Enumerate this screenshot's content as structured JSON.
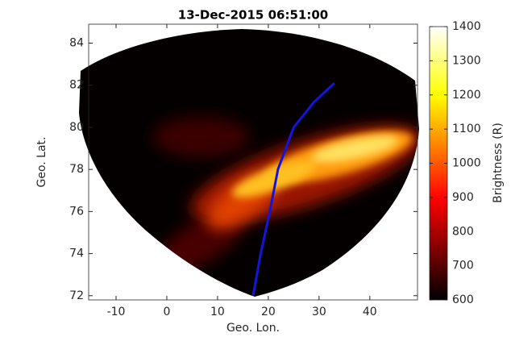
{
  "chart_data": {
    "type": "image",
    "title": "13-Dec-2015 06:51:00",
    "x_label": "Geo. Lon.",
    "y_label": "Geo. Lat.",
    "xlim": [
      -15.4,
      49.4
    ],
    "ylim": [
      71.8,
      84.9
    ],
    "xticks": [
      -10,
      0,
      10,
      20,
      30,
      40
    ],
    "yticks": [
      72,
      74,
      76,
      78,
      80,
      82,
      84
    ],
    "series": [
      {
        "color": "#1414dc",
        "x": [
          17,
          18.5,
          20.3,
          21.9,
          25,
          29,
          33
        ],
        "values": [
          72,
          74,
          76,
          78,
          80,
          81.2,
          82.1
        ]
      }
    ],
    "colorbar": {
      "label": "Brightness (R)",
      "lim": [
        600,
        1400
      ],
      "ticks": [
        600,
        700,
        800,
        900,
        1000,
        1100,
        1200,
        1300,
        1400
      ],
      "colormap": "hot"
    }
  }
}
